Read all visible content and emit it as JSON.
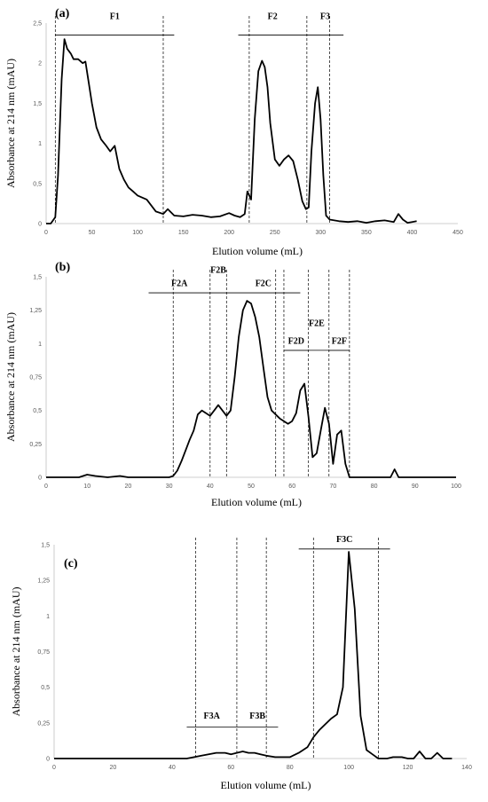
{
  "chart_data": [
    {
      "type": "line",
      "panel_label": "(a)",
      "xlabel": "Elution volume (mL)",
      "ylabel": "Absorbance at 214 nm (mAU)",
      "xlim": [
        0,
        450
      ],
      "ylim": [
        0,
        2.5
      ],
      "xticks": [
        0,
        50,
        100,
        150,
        200,
        250,
        300,
        350,
        400,
        450
      ],
      "yticks": [
        0,
        0.5,
        1,
        1.5,
        2,
        2.5
      ],
      "xtick_labels": [
        "0",
        "50",
        "100",
        "150",
        "200",
        "250",
        "300",
        "350",
        "400",
        "450"
      ],
      "ytick_labels": [
        "0",
        "0,5",
        "1",
        "1,5",
        "2",
        "2,5"
      ],
      "series": [
        {
          "x": [
            0,
            5,
            10,
            13,
            17,
            20,
            23,
            27,
            30,
            35,
            40,
            43,
            46,
            50,
            55,
            60,
            65,
            70,
            75,
            80,
            85,
            90,
            95,
            100,
            110,
            120,
            128,
            133,
            140,
            150,
            160,
            170,
            180,
            190,
            200,
            206,
            212,
            217,
            220,
            224,
            228,
            232,
            236,
            239,
            242,
            245,
            250,
            255,
            260,
            265,
            270,
            275,
            280,
            284,
            287,
            290,
            294,
            297,
            300,
            303,
            306,
            310,
            320,
            330,
            340,
            350,
            360,
            370,
            380,
            385,
            390,
            395,
            400,
            405
          ],
          "y": [
            0,
            0,
            0.08,
            0.6,
            1.8,
            2.3,
            2.18,
            2.12,
            2.05,
            2.05,
            2.0,
            2.02,
            1.8,
            1.5,
            1.2,
            1.05,
            0.98,
            0.9,
            0.97,
            0.68,
            0.55,
            0.45,
            0.4,
            0.35,
            0.3,
            0.15,
            0.12,
            0.18,
            0.1,
            0.09,
            0.11,
            0.1,
            0.08,
            0.09,
            0.13,
            0.1,
            0.08,
            0.12,
            0.4,
            0.3,
            1.3,
            1.9,
            2.03,
            1.95,
            1.7,
            1.25,
            0.8,
            0.72,
            0.8,
            0.85,
            0.78,
            0.55,
            0.28,
            0.18,
            0.2,
            0.9,
            1.5,
            1.7,
            1.3,
            0.6,
            0.1,
            0.05,
            0.03,
            0.02,
            0.03,
            0.01,
            0.03,
            0.04,
            0.02,
            0.12,
            0.05,
            0.01,
            0.02,
            0.03
          ]
        }
      ],
      "guides": [
        10,
        128,
        222,
        285,
        310
      ],
      "brackets": [
        {
          "label": "F1",
          "x0": 10,
          "x1": 140,
          "y": 2.35,
          "label_y": 2.55
        },
        {
          "label": "F2",
          "x0": 210,
          "x1": 285,
          "y": 2.35,
          "label_y": 2.55
        },
        {
          "label": "F3",
          "x0": 285,
          "x1": 325,
          "y": 2.35,
          "label_y": 2.55
        }
      ]
    },
    {
      "type": "line",
      "panel_label": "(b)",
      "xlabel": "Elution volume (mL)",
      "ylabel": "Absorbance at 214 nm (mAU)",
      "xlim": [
        0,
        100
      ],
      "ylim": [
        0,
        1.5
      ],
      "xticks": [
        0,
        10,
        20,
        30,
        40,
        50,
        60,
        70,
        80,
        90,
        100
      ],
      "yticks": [
        0,
        0.25,
        0.5,
        0.75,
        1,
        1.25,
        1.5
      ],
      "xtick_labels": [
        "0",
        "10",
        "20",
        "30",
        "40",
        "50",
        "60",
        "70",
        "80",
        "90",
        "100"
      ],
      "ytick_labels": [
        "0",
        "0,25",
        "0,5",
        "0,75",
        "1",
        "1,25",
        "1,5"
      ],
      "series": [
        {
          "x": [
            0,
            5,
            8,
            10,
            12,
            15,
            18,
            20,
            25,
            28,
            30,
            31,
            32,
            33,
            34,
            35,
            36,
            37,
            38,
            39,
            40,
            41,
            42,
            43,
            44,
            45,
            46,
            47,
            48,
            49,
            50,
            51,
            52,
            53,
            54,
            55,
            56,
            57,
            58,
            59,
            60,
            61,
            62,
            63,
            64,
            65,
            66,
            67,
            68,
            69,
            70,
            71,
            72,
            73,
            74,
            75,
            80,
            84,
            85,
            86,
            88,
            90,
            95,
            100
          ],
          "y": [
            0,
            0,
            0,
            0.02,
            0.01,
            0,
            0.01,
            0,
            0,
            0,
            0,
            0.01,
            0.05,
            0.12,
            0.2,
            0.28,
            0.35,
            0.47,
            0.5,
            0.48,
            0.46,
            0.5,
            0.54,
            0.5,
            0.46,
            0.5,
            0.75,
            1.05,
            1.25,
            1.32,
            1.3,
            1.2,
            1.05,
            0.82,
            0.6,
            0.5,
            0.47,
            0.44,
            0.42,
            0.4,
            0.42,
            0.48,
            0.65,
            0.7,
            0.45,
            0.15,
            0.18,
            0.35,
            0.52,
            0.4,
            0.1,
            0.32,
            0.35,
            0.1,
            0,
            0,
            0,
            0,
            0.06,
            0,
            0,
            0,
            0,
            0
          ]
        }
      ],
      "guides": [
        31,
        40,
        44,
        56,
        58,
        64,
        69,
        74
      ],
      "brackets": [
        {
          "label": "F2A",
          "x0": 25,
          "x1": 40,
          "y": 1.38,
          "label_y": 1.43
        },
        {
          "label": "F2B",
          "x0": 40,
          "x1": 44,
          "y": 1.38,
          "label_y": 1.53
        },
        {
          "label": "F2C",
          "x0": 44,
          "x1": 62,
          "y": 1.38,
          "label_y": 1.43
        },
        {
          "label": "F2E",
          "x0": 58,
          "x1": 74,
          "y": 0.95,
          "label_y": 1.13
        },
        {
          "label": "F2D",
          "x0": 58,
          "x1": 64,
          "y": 0.95,
          "label_y": 1.0
        },
        {
          "label": "F2F",
          "x0": 69,
          "x1": 74,
          "y": 0.95,
          "label_y": 1.0
        }
      ]
    },
    {
      "type": "line",
      "panel_label": "(c)",
      "xlabel": "Elution volume (mL)",
      "ylabel": "Absorbance at 214 nm (mAU)",
      "xlim": [
        0,
        140
      ],
      "ylim": [
        0,
        1.5
      ],
      "xticks": [
        0,
        20,
        40,
        60,
        80,
        100,
        120,
        140
      ],
      "yticks": [
        0,
        0.25,
        0.5,
        0.75,
        1,
        1.25,
        1.5
      ],
      "xtick_labels": [
        "0",
        "20",
        "40",
        "60",
        "80",
        "100",
        "120",
        "140"
      ],
      "ytick_labels": [
        "0",
        "0,25",
        "0,5",
        "0,75",
        "1",
        "1,25",
        "1,5"
      ],
      "series": [
        {
          "x": [
            0,
            10,
            20,
            30,
            40,
            45,
            50,
            55,
            58,
            60,
            62,
            64,
            66,
            68,
            70,
            72,
            75,
            80,
            83,
            86,
            88,
            90,
            92,
            94,
            96,
            98,
            100,
            102,
            104,
            106,
            108,
            110,
            113,
            115,
            118,
            120,
            122,
            124,
            126,
            128,
            130,
            132,
            135
          ],
          "y": [
            0,
            0,
            0,
            0,
            0,
            0,
            0.02,
            0.04,
            0.04,
            0.03,
            0.04,
            0.05,
            0.04,
            0.04,
            0.03,
            0.02,
            0.01,
            0.01,
            0.04,
            0.08,
            0.15,
            0.2,
            0.24,
            0.28,
            0.31,
            0.5,
            1.45,
            1.05,
            0.3,
            0.06,
            0.03,
            0,
            0,
            0.01,
            0.01,
            0,
            0,
            0.05,
            0,
            0,
            0.04,
            0,
            0
          ]
        }
      ],
      "guides": [
        48,
        62,
        72,
        88,
        110
      ],
      "brackets": [
        {
          "label": "F3A",
          "x0": 45,
          "x1": 62,
          "y": 0.22,
          "label_y": 0.28
        },
        {
          "label": "F3B",
          "x0": 62,
          "x1": 76,
          "y": 0.22,
          "label_y": 0.28
        },
        {
          "label": "F3C",
          "x0": 83,
          "x1": 114,
          "y": 1.47,
          "label_y": 1.52
        }
      ]
    }
  ]
}
